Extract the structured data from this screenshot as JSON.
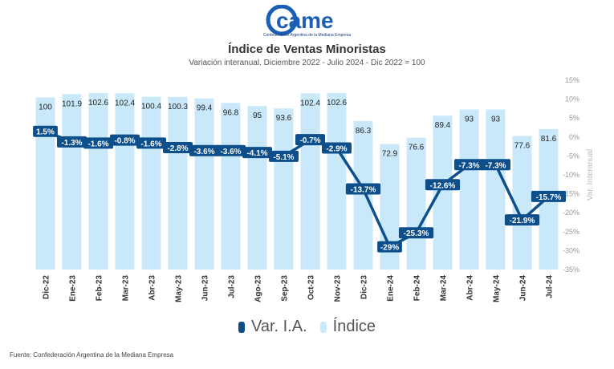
{
  "header": {
    "logo_text": "came",
    "logo_subtitle": "Confederación Argentina de la Mediana Empresa",
    "title": "Índice de Ventas Minoristas",
    "subtitle": "Variación interanual. Diciembre 2022 - Julio 2024 - Dic 2022 = 100"
  },
  "source": "Fuente: Confederación Argentina de la Mediana Empresa",
  "legend": {
    "line_label": "Var. I.A.",
    "bar_label": "Índice"
  },
  "colors": {
    "bar": "#c9e9fb",
    "line": "#0d4f8b",
    "logo": "#1a5fb4"
  },
  "chart_data": {
    "type": "bar",
    "categories": [
      "Dic-22",
      "Ene-23",
      "Feb-23",
      "Mar-23",
      "Abr-23",
      "May-23",
      "Jun-23",
      "Jul-23",
      "Ago-23",
      "Sep-23",
      "Oct-23",
      "Nov-23",
      "Dic-23",
      "Ene-24",
      "Feb-24",
      "Mar-24",
      "Abr-24",
      "May-24",
      "Jun-24",
      "Jul-24"
    ],
    "series": [
      {
        "name": "Índice",
        "type": "bar",
        "axis": "left",
        "values": [
          100,
          101.9,
          102.6,
          102.4,
          100.4,
          100.3,
          99.4,
          96.8,
          95,
          93.6,
          102.4,
          102.6,
          86.3,
          72.9,
          76.6,
          89.4,
          93,
          93,
          77.6,
          81.6
        ],
        "labels": [
          "100",
          "101.9",
          "102.6",
          "102.4",
          "100.4",
          "100.3",
          "99.4",
          "96.8",
          "95",
          "93.6",
          "102.4",
          "102.6",
          "86.3",
          "72.9",
          "76.6",
          "89.4",
          "93",
          "93",
          "77.6",
          "81.6"
        ]
      },
      {
        "name": "Var. I.A.",
        "type": "line",
        "axis": "right",
        "values": [
          1.5,
          -1.3,
          -1.6,
          -0.8,
          -1.6,
          -2.8,
          -3.6,
          -3.6,
          -4.1,
          -5.1,
          -0.7,
          -2.9,
          -13.7,
          -29,
          -25.3,
          -12.6,
          -7.3,
          -7.3,
          -21.9,
          -15.7
        ],
        "labels": [
          "1.5%",
          "-1.3%",
          "-1.6%",
          "-0.8%",
          "-1.6%",
          "-2.8%",
          "-3.6%",
          "-3.6%",
          "-4.1%",
          "-5.1%",
          "-0.7%",
          "-2.9%",
          "-13.7%",
          "-29%",
          "-25.3%",
          "-12.6%",
          "-7.3%",
          "-7.3%",
          "-21.9%",
          "-15.7%"
        ]
      }
    ],
    "y2": {
      "label": "Var. Interanual",
      "range": [
        -35,
        15
      ],
      "ticks": [
        15,
        10,
        5,
        0,
        -5,
        -10,
        -15,
        -20,
        -25,
        -30,
        -35
      ],
      "tick_labels": [
        "15%",
        "10%",
        "5%",
        "0%",
        "-5%",
        "-10%",
        "-15%",
        "-20%",
        "-25%",
        "-30%",
        "-35%"
      ]
    },
    "y1_range": [
      0,
      110
    ],
    "grid": false,
    "legend_position": "bottom"
  }
}
